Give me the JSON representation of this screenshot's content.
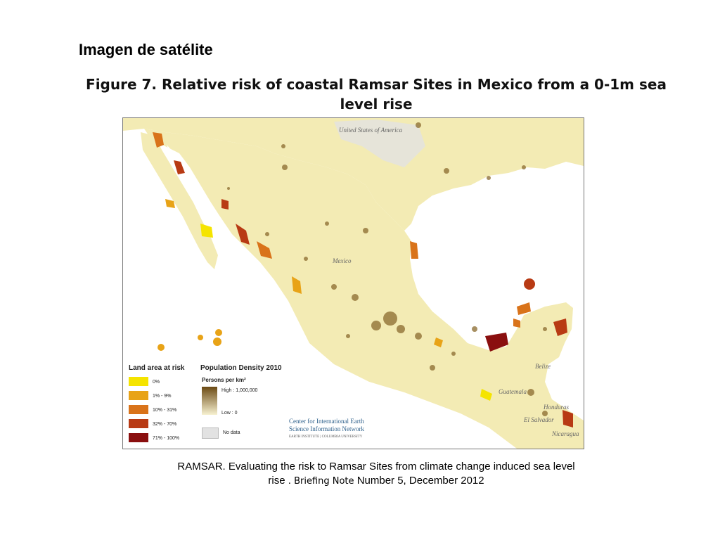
{
  "slide_title": "Imagen de satélite",
  "figure_title": "Figure 7. Relative risk of coastal Ramsar Sites in Mexico from a 0-1m sea level rise",
  "map": {
    "place_labels": {
      "usa": "United States of America",
      "mexico": "Mexico",
      "belize": "Belize",
      "guatemala": "Guatemala",
      "honduras": "Honduras",
      "el_salvador": "El Salvador",
      "nicaragua": "Nicaragua"
    },
    "legend": {
      "land_title": "Land area at risk",
      "land_classes": [
        {
          "label": "0%",
          "color": "#f5e400"
        },
        {
          "label": "1% - 9%",
          "color": "#e8a317"
        },
        {
          "label": "10% - 31%",
          "color": "#d9731a"
        },
        {
          "label": "32% - 70%",
          "color": "#b83a14"
        },
        {
          "label": "71% - 100%",
          "color": "#8a0f0f"
        }
      ],
      "pop_title": "Population Density 2010",
      "pop_subtitle": "Persons per km²",
      "pop_high": "High : 1,000,000",
      "pop_low": "Low : 0",
      "no_data": "No data",
      "no_data_color": "#e2e2e2"
    },
    "credit": {
      "line1": "Center for International Earth",
      "line2": "Science Information Network",
      "line3": "EARTH INSTITUTE | COLUMBIA UNIVERSITY"
    },
    "colors": {
      "land": "#f3ebb4",
      "water": "#ffffff",
      "urban": "#8a6a2e"
    }
  },
  "caption": {
    "line1": "RAMSAR. Evaluating the risk to Ramsar Sites from climate change induced sea level",
    "line2_a": "rise . ",
    "line2_b": "Briefing Note",
    "line2_c": " Number 5, December 2012"
  }
}
